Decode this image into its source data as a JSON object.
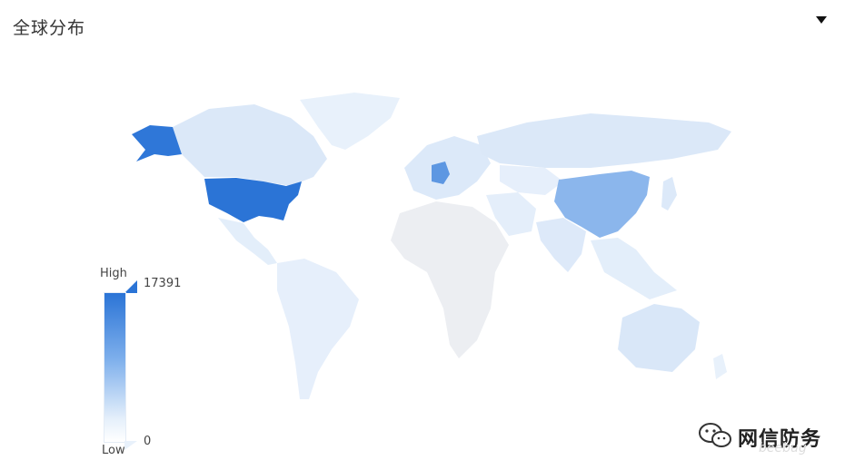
{
  "panel": {
    "title": "全球分布",
    "menu_icon": "caret-down-icon"
  },
  "legend": {
    "high_label": "High",
    "low_label": "Low",
    "max_value": "17391",
    "min_value": "0",
    "high_color": "#2b74d6",
    "low_color": "#ffffff"
  },
  "map": {
    "regions": [
      {
        "name": "United States",
        "level": 1.0
      },
      {
        "name": "Alaska",
        "level": 0.95
      },
      {
        "name": "China",
        "level": 0.55
      },
      {
        "name": "Germany",
        "level": 0.6
      },
      {
        "name": "Canada",
        "level": 0.12
      },
      {
        "name": "Russia",
        "level": 0.12
      },
      {
        "name": "Australia",
        "level": 0.1
      },
      {
        "name": "Brazil",
        "level": 0.05
      },
      {
        "name": "Africa",
        "level": 0.02
      }
    ]
  },
  "watermark": {
    "text": "网信防务",
    "sub": "beebug"
  }
}
